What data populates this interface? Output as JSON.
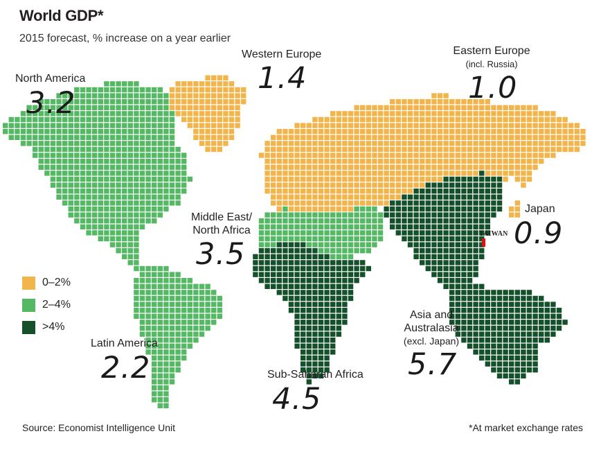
{
  "header": {
    "title": "World GDP*",
    "subtitle": "2015 forecast, % increase on a year earlier"
  },
  "regions": {
    "north_america": {
      "name": "North America",
      "value": "3.2",
      "color": "#55b864"
    },
    "western_europe": {
      "name": "Western Europe",
      "value": "1.4",
      "color": "#f2b54c"
    },
    "eastern_europe": {
      "name": "Eastern Europe",
      "note": "(incl. Russia)",
      "value": "1.0",
      "color": "#f2b54c"
    },
    "japan": {
      "name": "Japan",
      "value": "0.9",
      "color": "#f2b54c"
    },
    "middle_east": {
      "name": "Middle East/ North Africa",
      "value": "3.5",
      "color": "#55b864"
    },
    "latin_america": {
      "name": "Latin America",
      "value": "2.2",
      "color": "#55b864"
    },
    "sub_saharan": {
      "name": "Sub-Saharan Africa",
      "value": "4.5",
      "color": "#14512b"
    },
    "asia": {
      "name": "Asia and Australasia",
      "note": "(excl. Japan)",
      "value": "5.7",
      "color": "#14512b"
    }
  },
  "legend": [
    {
      "label": "0–2%",
      "color": "#f2b54c"
    },
    {
      "label": "2–4%",
      "color": "#55b864"
    },
    {
      "label": ">4%",
      "color": "#14512b"
    }
  ],
  "annotation": {
    "label": "TAIWAN",
    "color": "#e01010"
  },
  "footer": {
    "source": "Source: Economist Intelligence Unit",
    "footnote": "*At market exchange rates"
  }
}
